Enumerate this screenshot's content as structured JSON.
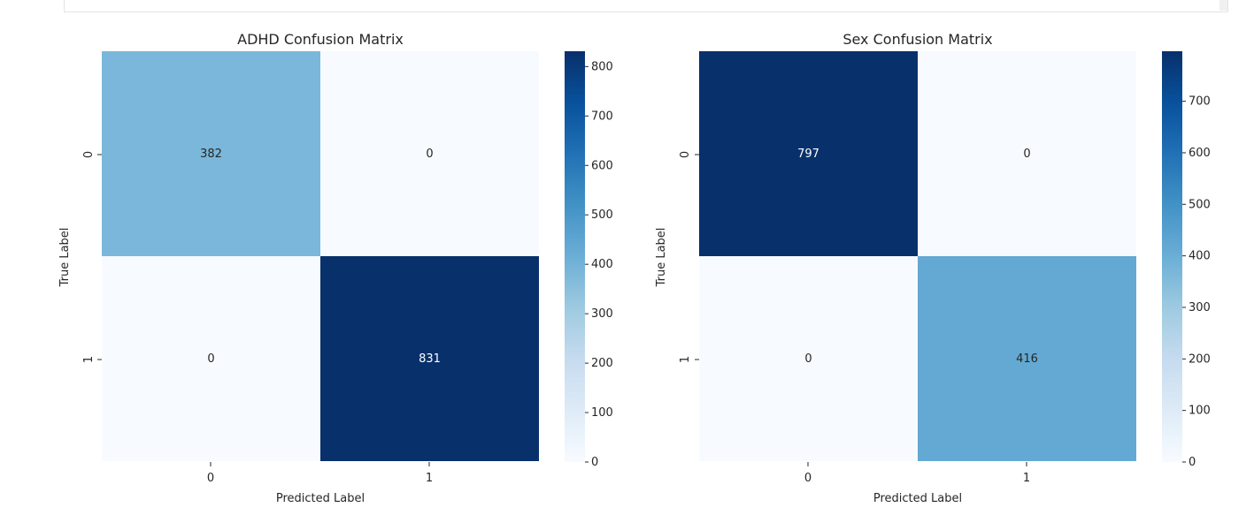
{
  "chart_data": [
    {
      "type": "heatmap",
      "title": "ADHD Confusion Matrix",
      "xlabel": "Predicted Label",
      "ylabel": "True Label",
      "x_categories": [
        "0",
        "1"
      ],
      "y_categories": [
        "0",
        "1"
      ],
      "values": [
        [
          382,
          0
        ],
        [
          0,
          831
        ]
      ],
      "colormap": "Blues",
      "colorbar": {
        "min": 0,
        "max": 831,
        "ticks": [
          0,
          100,
          200,
          300,
          400,
          500,
          600,
          700,
          800
        ]
      }
    },
    {
      "type": "heatmap",
      "title": "Sex Confusion Matrix",
      "xlabel": "Predicted Label",
      "ylabel": "True Label",
      "x_categories": [
        "0",
        "1"
      ],
      "y_categories": [
        "0",
        "1"
      ],
      "values": [
        [
          797,
          0
        ],
        [
          0,
          416
        ]
      ],
      "colormap": "Blues",
      "colorbar": {
        "min": 0,
        "max": 797,
        "ticks": [
          0,
          100,
          200,
          300,
          400,
          500,
          600,
          700
        ]
      }
    }
  ]
}
